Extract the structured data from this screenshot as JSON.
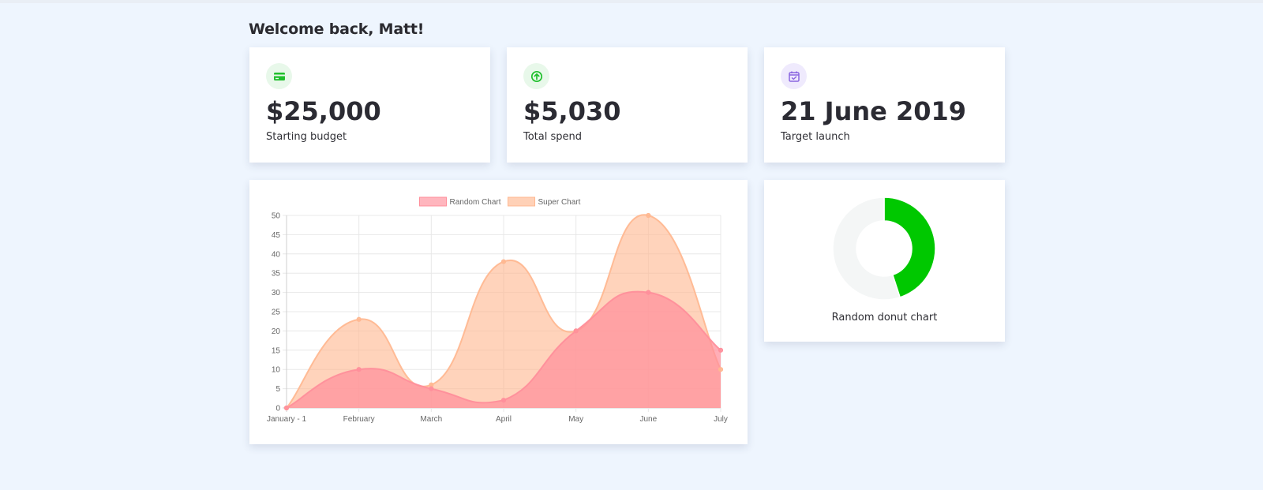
{
  "greeting": "Welcome back, Matt!",
  "stats": [
    {
      "icon": "credit-card-icon",
      "icon_color": "#1fbf2c",
      "value": "$25,000",
      "label": "Starting budget"
    },
    {
      "icon": "arrow-up-circle-icon",
      "icon_color": "#1fbf2c",
      "value": "$5,030",
      "label": "Total spend"
    },
    {
      "icon": "calendar-check-icon",
      "icon_color": "#8a66e0",
      "value": "21 June 2019",
      "label": "Target launch"
    }
  ],
  "chart_data": [
    {
      "type": "area",
      "categories": [
        "January - 1",
        "February",
        "March",
        "April",
        "May",
        "June",
        "July"
      ],
      "series": [
        {
          "name": "Random Chart",
          "values": [
            0,
            10,
            5,
            2,
            20,
            30,
            15
          ],
          "color": "#ff8f9b"
        },
        {
          "name": "Super Chart",
          "values": [
            0,
            23,
            6,
            38,
            20,
            50,
            10
          ],
          "color": "#ffb891"
        }
      ],
      "ylim": [
        0,
        50
      ],
      "yticks": [
        0,
        5,
        10,
        15,
        20,
        25,
        30,
        35,
        40,
        45,
        50
      ],
      "grid": true,
      "legend": "top",
      "title": "",
      "xlabel": "",
      "ylabel": ""
    },
    {
      "type": "pie",
      "variant": "donut",
      "label": "Random donut chart",
      "slices": [
        {
          "value": 45,
          "color": "#00c800"
        },
        {
          "value": 55,
          "color": "#f4f6f6"
        }
      ]
    }
  ]
}
